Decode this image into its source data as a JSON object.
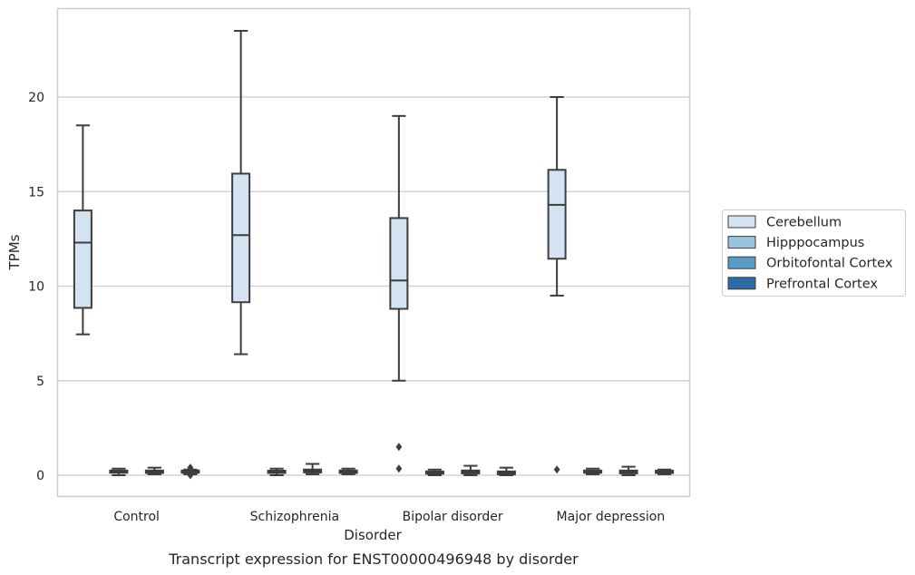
{
  "chart_data": {
    "type": "boxplot",
    "title": "",
    "caption": "Transcript expression for ENST00000496948 by disorder",
    "xlabel": "Disorder",
    "ylabel": "TPMs",
    "ylim": [
      -1.1,
      24.3
    ],
    "yticks": [
      0,
      5,
      10,
      15,
      20
    ],
    "categories": [
      "Control",
      "Schizophrenia",
      "Bipolar disorder",
      "Major depression"
    ],
    "grid": "horizontal",
    "legend_position": "right",
    "series": [
      {
        "name": "Cerebellum",
        "color": "#d3e3f2",
        "boxes": [
          {
            "whislo": 7.45,
            "q1": 8.85,
            "med": 12.3,
            "q3": 14.0,
            "whishi": 18.5,
            "fliers": []
          },
          {
            "whislo": 6.4,
            "q1": 9.15,
            "med": 12.7,
            "q3": 15.95,
            "whishi": 23.5,
            "fliers": []
          },
          {
            "whislo": 5.0,
            "q1": 8.8,
            "med": 10.3,
            "q3": 13.6,
            "whishi": 19.0,
            "fliers": [
              1.5,
              0.35
            ]
          },
          {
            "whislo": 9.5,
            "q1": 11.45,
            "med": 14.3,
            "q3": 16.15,
            "whishi": 20.0,
            "fliers": [
              0.3
            ]
          }
        ]
      },
      {
        "name": "Hipppocampus",
        "color": "#9ac3dd",
        "boxes": [
          {
            "whislo": 0.0,
            "q1": 0.15,
            "med": 0.2,
            "q3": 0.25,
            "whishi": 0.35,
            "fliers": []
          },
          {
            "whislo": 0.0,
            "q1": 0.12,
            "med": 0.18,
            "q3": 0.24,
            "whishi": 0.35,
            "fliers": []
          },
          {
            "whislo": 0.0,
            "q1": 0.08,
            "med": 0.12,
            "q3": 0.2,
            "whishi": 0.3,
            "fliers": []
          },
          {
            "whislo": 0.05,
            "q1": 0.15,
            "med": 0.2,
            "q3": 0.25,
            "whishi": 0.35,
            "fliers": []
          }
        ]
      },
      {
        "name": "Orbitofontal Cortex",
        "color": "#5a9cc9",
        "boxes": [
          {
            "whislo": 0.05,
            "q1": 0.12,
            "med": 0.2,
            "q3": 0.25,
            "whishi": 0.4,
            "fliers": []
          },
          {
            "whislo": 0.05,
            "q1": 0.15,
            "med": 0.22,
            "q3": 0.3,
            "whishi": 0.6,
            "fliers": []
          },
          {
            "whislo": 0.0,
            "q1": 0.1,
            "med": 0.18,
            "q3": 0.25,
            "whishi": 0.5,
            "fliers": []
          },
          {
            "whislo": 0.0,
            "q1": 0.1,
            "med": 0.18,
            "q3": 0.25,
            "whishi": 0.45,
            "fliers": []
          }
        ]
      },
      {
        "name": "Prefrontal Cortex",
        "color": "#2e6ba6",
        "boxes": [
          {
            "whislo": 0.05,
            "q1": 0.15,
            "med": 0.2,
            "q3": 0.25,
            "whishi": 0.3,
            "fliers": [
              0.4,
              0.3,
              0.2,
              0.1,
              0.0
            ]
          },
          {
            "whislo": 0.05,
            "q1": 0.12,
            "med": 0.18,
            "q3": 0.25,
            "whishi": 0.35,
            "fliers": []
          },
          {
            "whislo": 0.0,
            "q1": 0.05,
            "med": 0.12,
            "q3": 0.2,
            "whishi": 0.4,
            "fliers": []
          },
          {
            "whislo": 0.05,
            "q1": 0.12,
            "med": 0.18,
            "q3": 0.24,
            "whishi": 0.3,
            "fliers": []
          }
        ]
      }
    ]
  }
}
